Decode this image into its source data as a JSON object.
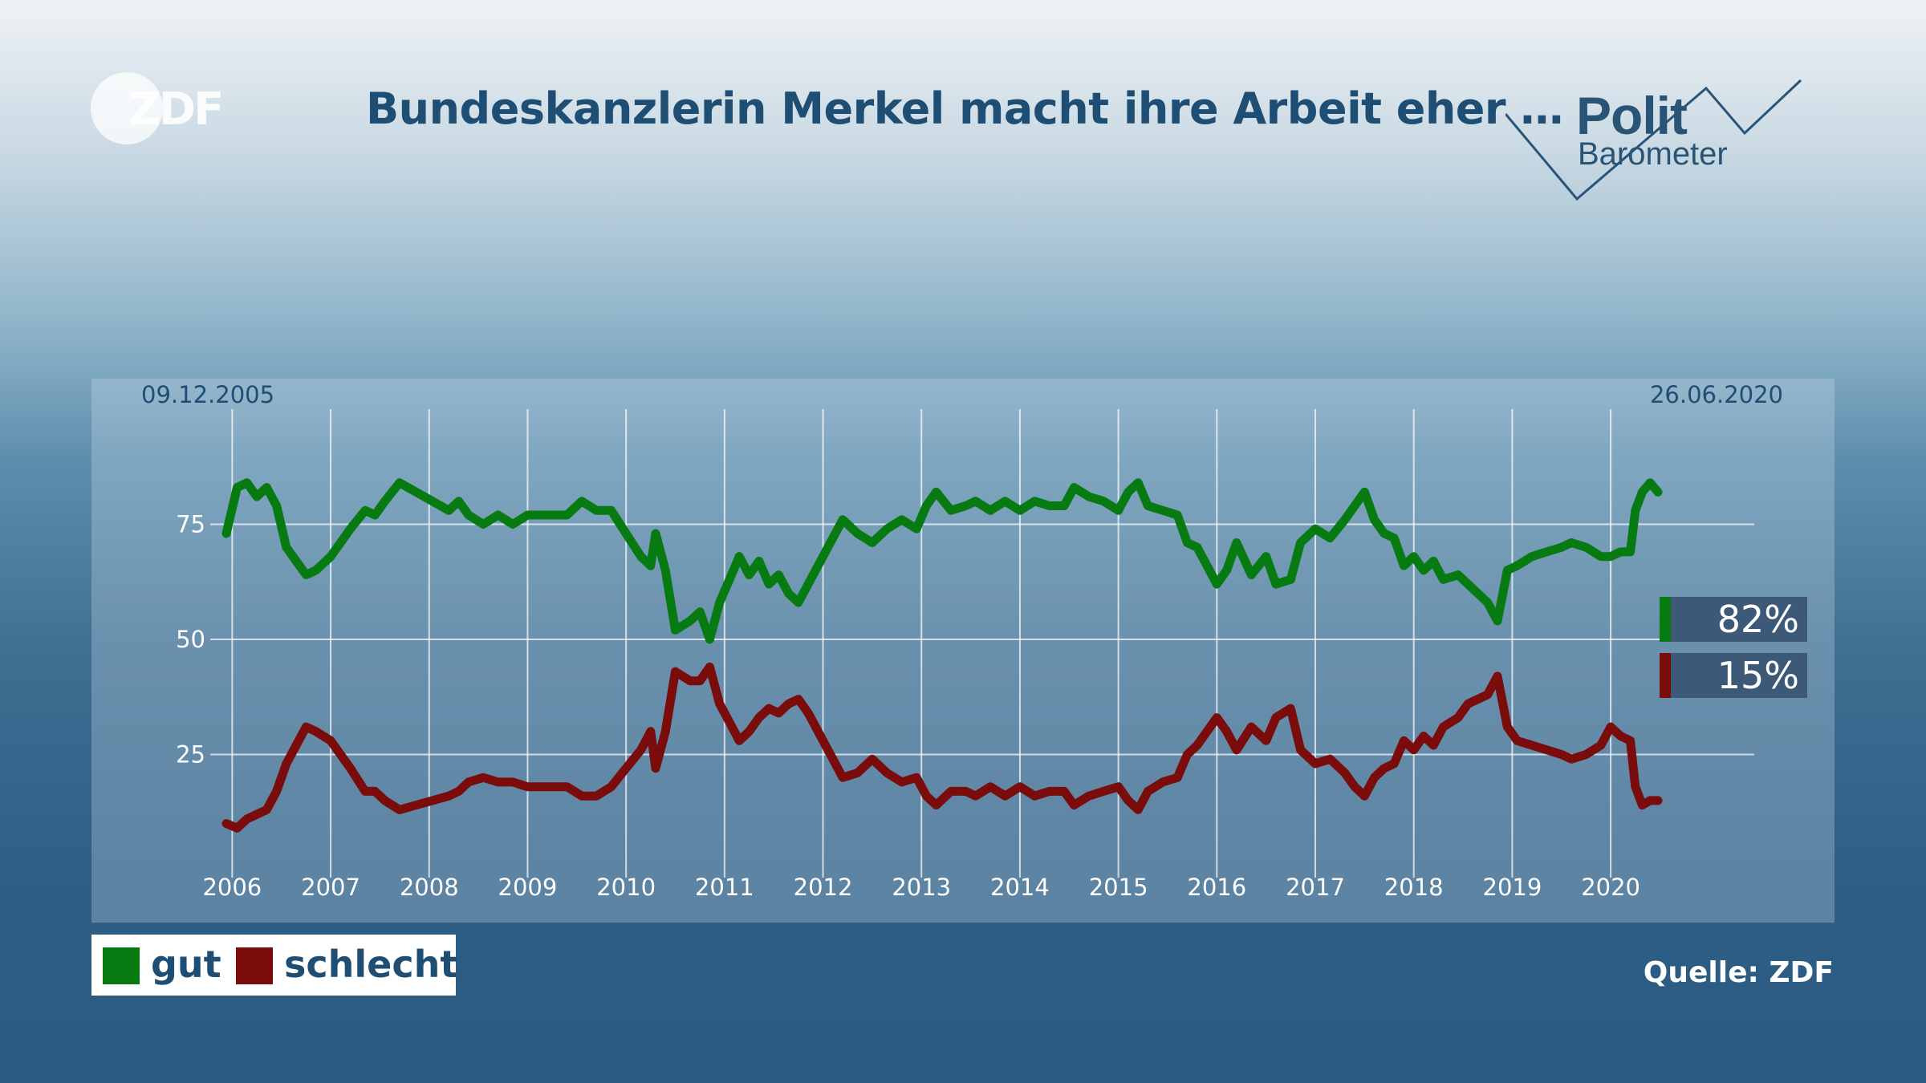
{
  "logo": {
    "text": "ZDF"
  },
  "header": {
    "title": "Bundeskanzlerin Merkel macht ihre Arbeit eher …"
  },
  "brand": {
    "polit": "Polit",
    "barometer": "Barometer"
  },
  "legend": {
    "items": [
      {
        "label": "gut",
        "color": "#087a12"
      },
      {
        "label": "schlecht",
        "color": "#7a0c0c"
      }
    ]
  },
  "source": "Quelle: ZDF",
  "chart_data": {
    "type": "line",
    "title": "Bundeskanzlerin Merkel macht ihre Arbeit eher …",
    "date_start": "09.12.2005",
    "date_end": "26.06.2020",
    "x_ticks": [
      "2006",
      "2007",
      "2008",
      "2009",
      "2010",
      "2011",
      "2012",
      "2013",
      "2014",
      "2015",
      "2016",
      "2017",
      "2018",
      "2019",
      "2020"
    ],
    "y_ticks": [
      25,
      50,
      75
    ],
    "ylim": [
      0,
      100
    ],
    "xlim": [
      2005.94,
      2020.48
    ],
    "grid": true,
    "legend_position": "bottom-left",
    "series": [
      {
        "name": "gut",
        "color": "#087a12",
        "final_label": "82%",
        "points": [
          [
            2005.94,
            73
          ],
          [
            2006.05,
            83
          ],
          [
            2006.15,
            84
          ],
          [
            2006.25,
            81
          ],
          [
            2006.35,
            83
          ],
          [
            2006.45,
            79
          ],
          [
            2006.55,
            70
          ],
          [
            2006.65,
            67
          ],
          [
            2006.75,
            64
          ],
          [
            2006.85,
            65
          ],
          [
            2007.0,
            68
          ],
          [
            2007.2,
            74
          ],
          [
            2007.35,
            78
          ],
          [
            2007.45,
            77
          ],
          [
            2007.55,
            80
          ],
          [
            2007.7,
            84
          ],
          [
            2008.2,
            78
          ],
          [
            2008.3,
            80
          ],
          [
            2008.4,
            77
          ],
          [
            2008.55,
            75
          ],
          [
            2008.7,
            77
          ],
          [
            2008.85,
            75
          ],
          [
            2009.0,
            77
          ],
          [
            2009.2,
            77
          ],
          [
            2009.4,
            77
          ],
          [
            2009.55,
            80
          ],
          [
            2009.7,
            78
          ],
          [
            2009.85,
            78
          ],
          [
            2010.0,
            73
          ],
          [
            2010.15,
            68
          ],
          [
            2010.25,
            66
          ],
          [
            2010.3,
            73
          ],
          [
            2010.4,
            65
          ],
          [
            2010.5,
            52
          ],
          [
            2010.65,
            54
          ],
          [
            2010.75,
            56
          ],
          [
            2010.85,
            50
          ],
          [
            2010.95,
            58
          ],
          [
            2011.05,
            63
          ],
          [
            2011.15,
            68
          ],
          [
            2011.25,
            64
          ],
          [
            2011.35,
            67
          ],
          [
            2011.45,
            62
          ],
          [
            2011.55,
            64
          ],
          [
            2011.65,
            60
          ],
          [
            2011.75,
            58
          ],
          [
            2011.85,
            62
          ],
          [
            2011.95,
            66
          ],
          [
            2012.1,
            72
          ],
          [
            2012.2,
            76
          ],
          [
            2012.35,
            73
          ],
          [
            2012.5,
            71
          ],
          [
            2012.65,
            74
          ],
          [
            2012.8,
            76
          ],
          [
            2012.95,
            74
          ],
          [
            2013.05,
            79
          ],
          [
            2013.15,
            82
          ],
          [
            2013.3,
            78
          ],
          [
            2013.45,
            79
          ],
          [
            2013.55,
            80
          ],
          [
            2013.7,
            78
          ],
          [
            2013.85,
            80
          ],
          [
            2014.0,
            78
          ],
          [
            2014.15,
            80
          ],
          [
            2014.3,
            79
          ],
          [
            2014.45,
            79
          ],
          [
            2014.55,
            83
          ],
          [
            2014.7,
            81
          ],
          [
            2014.85,
            80
          ],
          [
            2015.0,
            78
          ],
          [
            2015.1,
            82
          ],
          [
            2015.2,
            84
          ],
          [
            2015.3,
            79
          ],
          [
            2015.45,
            78
          ],
          [
            2015.6,
            77
          ],
          [
            2015.7,
            71
          ],
          [
            2015.8,
            70
          ],
          [
            2016.0,
            62
          ],
          [
            2016.1,
            65
          ],
          [
            2016.2,
            71
          ],
          [
            2016.35,
            64
          ],
          [
            2016.5,
            68
          ],
          [
            2016.6,
            62
          ],
          [
            2016.75,
            63
          ],
          [
            2016.85,
            71
          ],
          [
            2017.0,
            74
          ],
          [
            2017.15,
            72
          ],
          [
            2017.3,
            76
          ],
          [
            2017.4,
            79
          ],
          [
            2017.5,
            82
          ],
          [
            2017.6,
            76
          ],
          [
            2017.7,
            73
          ],
          [
            2017.8,
            72
          ],
          [
            2017.9,
            66
          ],
          [
            2018.0,
            68
          ],
          [
            2018.1,
            65
          ],
          [
            2018.2,
            67
          ],
          [
            2018.3,
            63
          ],
          [
            2018.45,
            64
          ],
          [
            2018.55,
            62
          ],
          [
            2018.65,
            60
          ],
          [
            2018.75,
            58
          ],
          [
            2018.85,
            54
          ],
          [
            2018.95,
            65
          ],
          [
            2019.05,
            66
          ],
          [
            2019.2,
            68
          ],
          [
            2019.35,
            69
          ],
          [
            2019.5,
            70
          ],
          [
            2019.6,
            71
          ],
          [
            2019.75,
            70
          ],
          [
            2019.9,
            68
          ],
          [
            2020.0,
            68
          ],
          [
            2020.1,
            69
          ],
          [
            2020.2,
            69
          ],
          [
            2020.25,
            78
          ],
          [
            2020.32,
            82
          ],
          [
            2020.4,
            84
          ],
          [
            2020.48,
            82
          ]
        ]
      },
      {
        "name": "schlecht",
        "color": "#7a0c0c",
        "final_label": "15%",
        "points": [
          [
            2005.94,
            10
          ],
          [
            2006.05,
            9
          ],
          [
            2006.15,
            11
          ],
          [
            2006.25,
            12
          ],
          [
            2006.35,
            13
          ],
          [
            2006.45,
            17
          ],
          [
            2006.55,
            23
          ],
          [
            2006.65,
            27
          ],
          [
            2006.75,
            31
          ],
          [
            2006.85,
            30
          ],
          [
            2007.0,
            28
          ],
          [
            2007.2,
            22
          ],
          [
            2007.35,
            17
          ],
          [
            2007.45,
            17
          ],
          [
            2007.55,
            15
          ],
          [
            2007.7,
            13
          ],
          [
            2008.2,
            16
          ],
          [
            2008.3,
            17
          ],
          [
            2008.4,
            19
          ],
          [
            2008.55,
            20
          ],
          [
            2008.7,
            19
          ],
          [
            2008.85,
            19
          ],
          [
            2009.0,
            18
          ],
          [
            2009.2,
            18
          ],
          [
            2009.4,
            18
          ],
          [
            2009.55,
            16
          ],
          [
            2009.7,
            16
          ],
          [
            2009.85,
            18
          ],
          [
            2010.0,
            22
          ],
          [
            2010.15,
            26
          ],
          [
            2010.25,
            30
          ],
          [
            2010.3,
            22
          ],
          [
            2010.4,
            30
          ],
          [
            2010.5,
            43
          ],
          [
            2010.65,
            41
          ],
          [
            2010.75,
            41
          ],
          [
            2010.85,
            44
          ],
          [
            2010.95,
            36
          ],
          [
            2011.05,
            32
          ],
          [
            2011.15,
            28
          ],
          [
            2011.25,
            30
          ],
          [
            2011.35,
            33
          ],
          [
            2011.45,
            35
          ],
          [
            2011.55,
            34
          ],
          [
            2011.65,
            36
          ],
          [
            2011.75,
            37
          ],
          [
            2011.85,
            34
          ],
          [
            2011.95,
            30
          ],
          [
            2012.1,
            24
          ],
          [
            2012.2,
            20
          ],
          [
            2012.35,
            21
          ],
          [
            2012.5,
            24
          ],
          [
            2012.65,
            21
          ],
          [
            2012.8,
            19
          ],
          [
            2012.95,
            20
          ],
          [
            2013.05,
            16
          ],
          [
            2013.15,
            14
          ],
          [
            2013.3,
            17
          ],
          [
            2013.45,
            17
          ],
          [
            2013.55,
            16
          ],
          [
            2013.7,
            18
          ],
          [
            2013.85,
            16
          ],
          [
            2014.0,
            18
          ],
          [
            2014.15,
            16
          ],
          [
            2014.3,
            17
          ],
          [
            2014.45,
            17
          ],
          [
            2014.55,
            14
          ],
          [
            2014.7,
            16
          ],
          [
            2014.85,
            17
          ],
          [
            2015.0,
            18
          ],
          [
            2015.1,
            15
          ],
          [
            2015.2,
            13
          ],
          [
            2015.3,
            17
          ],
          [
            2015.45,
            19
          ],
          [
            2015.6,
            20
          ],
          [
            2015.7,
            25
          ],
          [
            2015.8,
            27
          ],
          [
            2016.0,
            33
          ],
          [
            2016.1,
            30
          ],
          [
            2016.2,
            26
          ],
          [
            2016.35,
            31
          ],
          [
            2016.5,
            28
          ],
          [
            2016.6,
            33
          ],
          [
            2016.75,
            35
          ],
          [
            2016.85,
            26
          ],
          [
            2017.0,
            23
          ],
          [
            2017.15,
            24
          ],
          [
            2017.3,
            21
          ],
          [
            2017.4,
            18
          ],
          [
            2017.5,
            16
          ],
          [
            2017.6,
            20
          ],
          [
            2017.7,
            22
          ],
          [
            2017.8,
            23
          ],
          [
            2017.9,
            28
          ],
          [
            2018.0,
            26
          ],
          [
            2018.1,
            29
          ],
          [
            2018.2,
            27
          ],
          [
            2018.3,
            31
          ],
          [
            2018.45,
            33
          ],
          [
            2018.55,
            36
          ],
          [
            2018.65,
            37
          ],
          [
            2018.75,
            38
          ],
          [
            2018.85,
            42
          ],
          [
            2018.95,
            31
          ],
          [
            2019.05,
            28
          ],
          [
            2019.2,
            27
          ],
          [
            2019.35,
            26
          ],
          [
            2019.5,
            25
          ],
          [
            2019.6,
            24
          ],
          [
            2019.75,
            25
          ],
          [
            2019.9,
            27
          ],
          [
            2020.0,
            31
          ],
          [
            2020.1,
            29
          ],
          [
            2020.2,
            28
          ],
          [
            2020.25,
            18
          ],
          [
            2020.32,
            14
          ],
          [
            2020.4,
            15
          ],
          [
            2020.48,
            15
          ]
        ]
      }
    ]
  }
}
